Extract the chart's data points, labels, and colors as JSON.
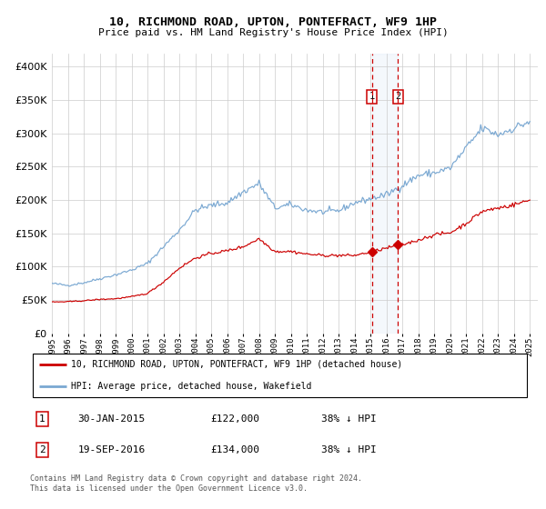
{
  "title": "10, RICHMOND ROAD, UPTON, PONTEFRACT, WF9 1HP",
  "subtitle": "Price paid vs. HM Land Registry's House Price Index (HPI)",
  "legend_label_red": "10, RICHMOND ROAD, UPTON, PONTEFRACT, WF9 1HP (detached house)",
  "legend_label_blue": "HPI: Average price, detached house, Wakefield",
  "annotation1_date": "30-JAN-2015",
  "annotation1_price": 122000,
  "annotation1_text": "38% ↓ HPI",
  "annotation2_date": "19-SEP-2016",
  "annotation2_price": 134000,
  "annotation2_text": "38% ↓ HPI",
  "footer": "Contains HM Land Registry data © Crown copyright and database right 2024.\nThis data is licensed under the Open Government Licence v3.0.",
  "red_color": "#cc0000",
  "blue_color": "#7aa8d2",
  "background_color": "#ffffff",
  "grid_color": "#cccccc",
  "marker1_x": 2015.08,
  "marker2_x": 2016.72,
  "ylim_max": 420000,
  "xlim_min": 1995,
  "xlim_max": 2025.5
}
